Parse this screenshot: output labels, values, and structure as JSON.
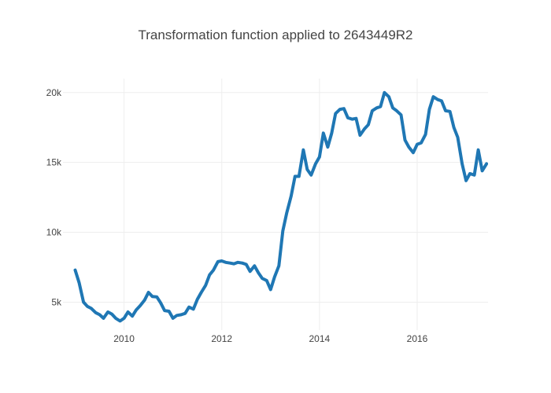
{
  "chart_data": {
    "type": "line",
    "title": "Transformation function applied to 2643449R2",
    "xlabel": "",
    "ylabel": "",
    "x_tick_labels": [
      "2010",
      "2012",
      "2014",
      "2016"
    ],
    "x_tick_values": [
      2010,
      2012,
      2014,
      2016
    ],
    "y_tick_labels": [
      "5k",
      "10k",
      "15k",
      "20k"
    ],
    "y_tick_values": [
      5000,
      10000,
      15000,
      20000
    ],
    "xlim": [
      2008.75,
      2017.45
    ],
    "ylim": [
      3000,
      21000
    ],
    "grid": true,
    "series": [
      {
        "color": "#1f77b4",
        "x": [
          2009.0,
          2009.08,
          2009.17,
          2009.25,
          2009.33,
          2009.42,
          2009.5,
          2009.58,
          2009.67,
          2009.75,
          2009.83,
          2009.92,
          2010.0,
          2010.08,
          2010.17,
          2010.25,
          2010.33,
          2010.42,
          2010.5,
          2010.58,
          2010.67,
          2010.75,
          2010.83,
          2010.92,
          2011.0,
          2011.08,
          2011.17,
          2011.25,
          2011.33,
          2011.42,
          2011.5,
          2011.58,
          2011.67,
          2011.75,
          2011.83,
          2011.92,
          2012.0,
          2012.08,
          2012.17,
          2012.25,
          2012.33,
          2012.42,
          2012.5,
          2012.58,
          2012.67,
          2012.75,
          2012.83,
          2012.92,
          2013.0,
          2013.08,
          2013.17,
          2013.25,
          2013.33,
          2013.42,
          2013.5,
          2013.58,
          2013.67,
          2013.75,
          2013.83,
          2013.92,
          2014.0,
          2014.08,
          2014.17,
          2014.25,
          2014.33,
          2014.42,
          2014.5,
          2014.58,
          2014.67,
          2014.75,
          2014.83,
          2014.92,
          2015.0,
          2015.08,
          2015.17,
          2015.25,
          2015.33,
          2015.42,
          2015.5,
          2015.58,
          2015.67,
          2015.75,
          2015.83,
          2015.92,
          2016.0,
          2016.08,
          2016.17,
          2016.25,
          2016.33,
          2016.42,
          2016.5,
          2016.58,
          2016.67,
          2016.75,
          2016.83,
          2016.92,
          2017.0,
          2017.08,
          2017.17,
          2017.25,
          2017.33,
          2017.42
        ],
        "y": [
          7300,
          6400,
          5000,
          4700,
          4550,
          4250,
          4100,
          3850,
          4300,
          4150,
          3850,
          3650,
          3850,
          4300,
          4000,
          4450,
          4750,
          5150,
          5700,
          5400,
          5380,
          4950,
          4400,
          4350,
          3850,
          4050,
          4100,
          4200,
          4650,
          4500,
          5200,
          5700,
          6200,
          6950,
          7300,
          7900,
          7950,
          7850,
          7800,
          7750,
          7850,
          7800,
          7700,
          7200,
          7600,
          7100,
          6700,
          6550,
          5900,
          6800,
          7600,
          10100,
          11400,
          12600,
          14000,
          14000,
          15900,
          14500,
          14100,
          14900,
          15400,
          17100,
          16100,
          17100,
          18500,
          18800,
          18850,
          18200,
          18100,
          18150,
          16950,
          17400,
          17700,
          18700,
          18900,
          19000,
          20000,
          19700,
          18900,
          18700,
          18400,
          16600,
          16100,
          15700,
          16300,
          16400,
          17000,
          18800,
          19700,
          19500,
          19400,
          18700,
          18650,
          17500,
          16800,
          14900,
          13700,
          14200,
          14100,
          15900,
          14400,
          14900
        ]
      }
    ]
  }
}
